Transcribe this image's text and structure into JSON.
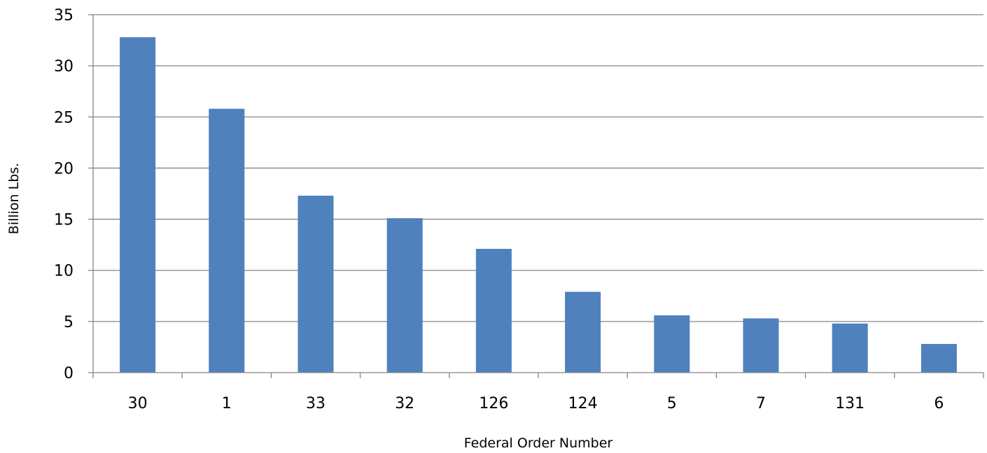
{
  "chart_data": {
    "type": "bar",
    "title": "",
    "xlabel": "Federal Order Number",
    "ylabel": "Billion Lbs.",
    "categories": [
      "30",
      "1",
      "33",
      "32",
      "126",
      "124",
      "5",
      "7",
      "131",
      "6"
    ],
    "series": [
      {
        "values": [
          32.8,
          25.8,
          17.3,
          15.1,
          12.1,
          7.9,
          5.6,
          5.3,
          4.8,
          2.8
        ]
      }
    ],
    "ylim": [
      0,
      35
    ],
    "yticks": [
      "0",
      "5",
      "10",
      "15",
      "20",
      "25",
      "30",
      "35"
    ],
    "grid": true,
    "legend": "none",
    "bar_color": "#4F81BD"
  }
}
